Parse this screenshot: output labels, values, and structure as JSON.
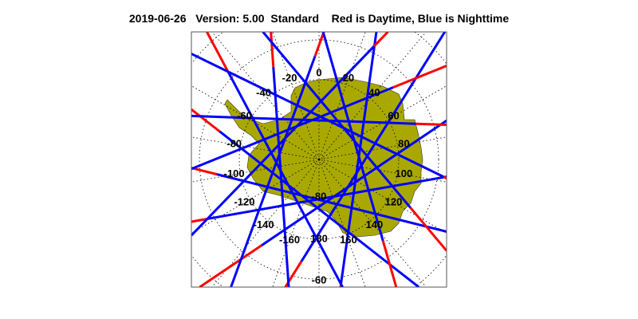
{
  "header": {
    "date": "2019-06-26",
    "version": "Version: 5.00",
    "mode": "Standard",
    "legend_text": "Red is Daytime, Blue is Nighttime"
  },
  "map": {
    "projection": "south polar stereographic",
    "land_color": "#a8a800",
    "day_color": "#ff0000",
    "night_color": "#0000ff",
    "longitude_labels": [
      "0",
      "20",
      "40",
      "60",
      "80",
      "100",
      "120",
      "140",
      "160",
      "180",
      "-160",
      "-140",
      "-120",
      "-100",
      "-80",
      "-60",
      "-40",
      "-20"
    ],
    "latitude_labels": [
      "-80",
      "-60"
    ]
  }
}
